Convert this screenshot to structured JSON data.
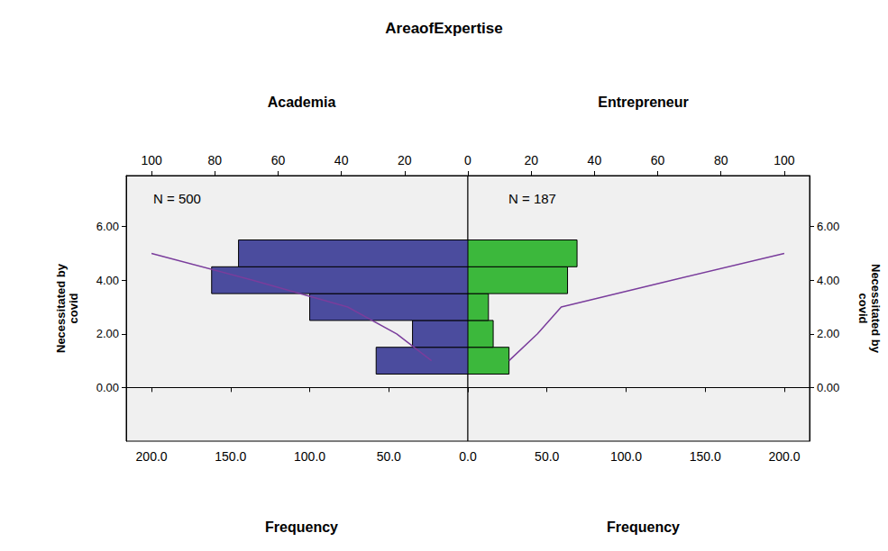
{
  "chart_data": {
    "type": "population_pyramid",
    "title": "AreaofExpertise",
    "y_label": "Necessitated by covid",
    "x_label": "Frequency",
    "ylim": [
      -2,
      7.9
    ],
    "yticks": [
      {
        "value": 0,
        "label": "0.00"
      },
      {
        "value": 2,
        "label": "2.00"
      },
      {
        "value": 4,
        "label": "4.00"
      },
      {
        "value": 6,
        "label": "6.00"
      }
    ],
    "xlim": [
      0,
      216
    ],
    "xticks": [
      {
        "value": 0,
        "label": "0.0"
      },
      {
        "value": 50,
        "label": "50.0"
      },
      {
        "value": 100,
        "label": "100.0"
      },
      {
        "value": 150,
        "label": "150.0"
      },
      {
        "value": 200,
        "label": "200.0"
      }
    ],
    "x2lim": [
      0,
      108
    ],
    "x2ticks": [
      0,
      20,
      40,
      60,
      80,
      100
    ],
    "panels": [
      {
        "name": "Academia",
        "annotation": "N = 500",
        "y": [
          1,
          2,
          3,
          4,
          5
        ],
        "series": [
          {
            "type": "bar",
            "color": "#4b4c9e",
            "values": [
              58,
              35,
              100,
              162,
              145
            ]
          },
          {
            "type": "line",
            "axis": "x2",
            "color": "#7a3d9c",
            "values": [
              11.5,
              22.5,
              38,
              68,
              100
            ]
          }
        ]
      },
      {
        "name": "Entrepreneur",
        "annotation": "N = 187",
        "y": [
          1,
          2,
          3,
          4,
          5
        ],
        "series": [
          {
            "type": "bar",
            "color": "#3cb83c",
            "values": [
              26,
              16,
              13,
              63,
              69
            ]
          },
          {
            "type": "line",
            "axis": "x2",
            "color": "#7a3d9c",
            "values": [
              13,
              22,
              29.5,
              64.5,
              100
            ]
          }
        ]
      }
    ]
  }
}
